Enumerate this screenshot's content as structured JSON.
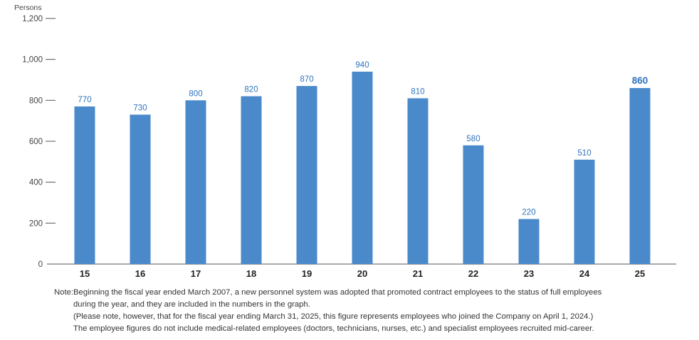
{
  "chart_data": {
    "type": "bar",
    "ylabel": "Persons",
    "ylim": [
      0,
      1200
    ],
    "yticks": [
      "0",
      "200",
      "400",
      "600",
      "800",
      "1,000",
      "1,200"
    ],
    "categories": [
      "15",
      "16",
      "17",
      "18",
      "19",
      "20",
      "21",
      "22",
      "23",
      "24",
      "25"
    ],
    "values": [
      770,
      730,
      800,
      820,
      870,
      940,
      810,
      580,
      220,
      510,
      860
    ],
    "value_labels": [
      "770",
      "730",
      "800",
      "820",
      "870",
      "940",
      "810",
      "580",
      "220",
      "510",
      "860"
    ],
    "highlighted_index": 10,
    "bar_color": "#4a8acb",
    "label_color": "#2f73bf",
    "grid": false
  },
  "note": {
    "label": "Note:",
    "lines": [
      "Beginning the fiscal year ended March 2007, a new personnel system was adopted that promoted contract employees to the status of full employees",
      "during the year, and they are included in the numbers in the graph.",
      "(Please note, however, that for the fiscal year ending March 31, 2025, this figure represents employees who joined the Company on April 1, 2024.)",
      "The employee figures do not include medical-related employees (doctors, technicians, nurses, etc.) and specialist employees recruited mid-career."
    ]
  }
}
